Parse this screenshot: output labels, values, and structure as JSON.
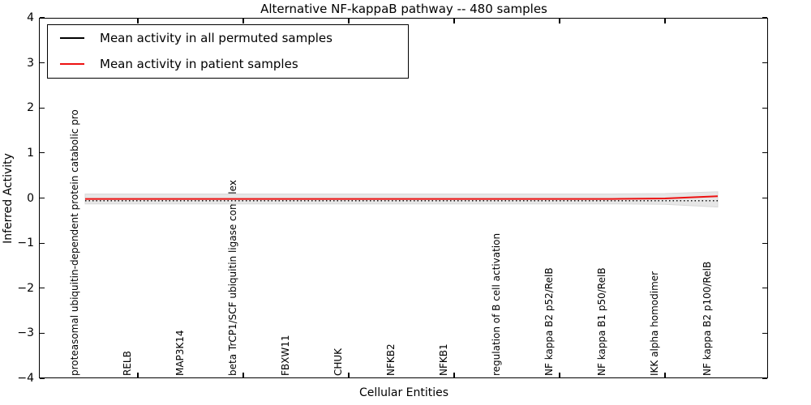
{
  "title": "Alternative NF-kappaB pathway -- 480 samples",
  "axes": {
    "ylabel": "Inferred Activity",
    "xlabel": "Cellular Entities",
    "ytick_labels": [
      "4",
      "3",
      "2",
      "1",
      "0",
      "−1",
      "−2",
      "−3",
      "−4"
    ]
  },
  "legend": {
    "items": [
      {
        "label": "Mean activity in all permuted samples",
        "color": "#000000"
      },
      {
        "label": "Mean activity in patient samples",
        "color": "#ed1111"
      }
    ]
  },
  "chart_data": {
    "type": "line",
    "title": "Alternative NF-kappaB pathway -- 480 samples",
    "xlabel": "Cellular Entities",
    "ylabel": "Inferred Activity",
    "ylim": [
      -4,
      4
    ],
    "grid": false,
    "legend_position": "upper left",
    "categories": [
      "proteasomal ubiquitin-dependent protein catabolic pro",
      "RELB",
      "MAP3K14",
      "beta TrCP1/SCF ubiquitin ligase complex",
      "FBXW11",
      "CHUK",
      "NFKB2",
      "NFKB1",
      "regulation of B cell activation",
      "NF kappa B2 p52/RelB",
      "NF kappa B1 p50/RelB",
      "IKK alpha homodimer",
      "NF kappa B2 p100/RelB"
    ],
    "series": [
      {
        "name": "Mean activity in all permuted samples",
        "color": "#000000",
        "style": "dotted",
        "values": [
          -0.06,
          -0.06,
          -0.06,
          -0.06,
          -0.06,
          -0.06,
          -0.06,
          -0.06,
          -0.06,
          -0.06,
          -0.06,
          -0.06,
          -0.06
        ]
      },
      {
        "name": "Mean activity in patient samples",
        "color": "#ed1111",
        "style": "solid",
        "values": [
          -0.02,
          -0.02,
          -0.02,
          -0.02,
          -0.02,
          -0.02,
          -0.02,
          -0.02,
          -0.02,
          -0.02,
          -0.02,
          -0.01,
          0.04
        ]
      }
    ],
    "uncertainty_band": {
      "color": "#e7e7e7",
      "edge_color": "#d8d8d8",
      "upper": [
        0.09,
        0.09,
        0.09,
        0.09,
        0.09,
        0.09,
        0.09,
        0.09,
        0.09,
        0.09,
        0.09,
        0.1,
        0.14
      ],
      "lower": [
        -0.13,
        -0.13,
        -0.13,
        -0.13,
        -0.13,
        -0.13,
        -0.13,
        -0.13,
        -0.13,
        -0.13,
        -0.13,
        -0.14,
        -0.2
      ]
    },
    "x_tick_indices": [
      1,
      3,
      5,
      7,
      9,
      11
    ]
  }
}
